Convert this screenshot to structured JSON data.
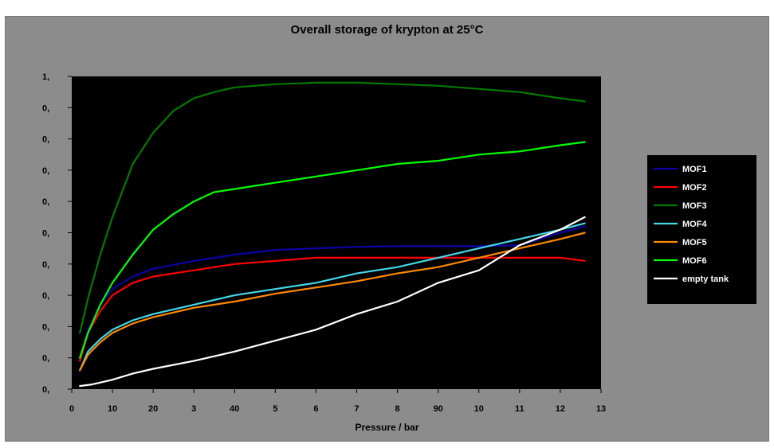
{
  "chart_data": {
    "type": "line",
    "title": "Overall storage of krypton at 25°C",
    "xlabel": "Pressure / bar",
    "ylabel": "",
    "x_tick_labels": [
      "0",
      "10",
      "20",
      "3",
      "40",
      "5",
      "6",
      "7",
      "8",
      "90",
      "10",
      "11",
      "12",
      "13"
    ],
    "y_tick_labels": [
      "0,",
      "0,",
      "0,",
      "0,",
      "0,",
      "0,",
      "0,",
      "0,",
      "0,",
      "0,",
      "1,"
    ],
    "xlim": [
      0,
      130
    ],
    "ylim": [
      0,
      1
    ],
    "grid": false,
    "legend_position": "right",
    "colors": {
      "frame": "#8c8c8c",
      "plot_background": "#000000",
      "legend_background": "#000000"
    },
    "series": [
      {
        "name": "MOF1",
        "color": "#0d00a8",
        "points": [
          [
            2,
            0.09
          ],
          [
            4,
            0.19
          ],
          [
            7,
            0.27
          ],
          [
            10,
            0.32
          ],
          [
            15,
            0.36
          ],
          [
            20,
            0.385
          ],
          [
            30,
            0.41
          ],
          [
            40,
            0.43
          ],
          [
            50,
            0.445
          ],
          [
            60,
            0.45
          ],
          [
            70,
            0.455
          ],
          [
            80,
            0.457
          ],
          [
            90,
            0.457
          ],
          [
            100,
            0.457
          ],
          [
            110,
            0.46
          ],
          [
            120,
            0.5
          ],
          [
            126,
            0.52
          ]
        ]
      },
      {
        "name": "MOF2",
        "color": "#ff0000",
        "points": [
          [
            2,
            0.09
          ],
          [
            4,
            0.18
          ],
          [
            7,
            0.25
          ],
          [
            10,
            0.3
          ],
          [
            15,
            0.34
          ],
          [
            20,
            0.36
          ],
          [
            30,
            0.38
          ],
          [
            40,
            0.4
          ],
          [
            50,
            0.41
          ],
          [
            60,
            0.42
          ],
          [
            70,
            0.42
          ],
          [
            80,
            0.42
          ],
          [
            90,
            0.42
          ],
          [
            100,
            0.42
          ],
          [
            110,
            0.42
          ],
          [
            120,
            0.42
          ],
          [
            126,
            0.41
          ]
        ]
      },
      {
        "name": "MOF3",
        "color": "#007a00",
        "points": [
          [
            2,
            0.18
          ],
          [
            4,
            0.29
          ],
          [
            7,
            0.43
          ],
          [
            10,
            0.55
          ],
          [
            15,
            0.72
          ],
          [
            20,
            0.82
          ],
          [
            25,
            0.89
          ],
          [
            30,
            0.93
          ],
          [
            35,
            0.95
          ],
          [
            40,
            0.965
          ],
          [
            50,
            0.975
          ],
          [
            60,
            0.98
          ],
          [
            70,
            0.98
          ],
          [
            80,
            0.975
          ],
          [
            90,
            0.97
          ],
          [
            100,
            0.96
          ],
          [
            110,
            0.95
          ],
          [
            120,
            0.93
          ],
          [
            126,
            0.92
          ]
        ]
      },
      {
        "name": "MOF4",
        "color": "#45d7ea",
        "points": [
          [
            2,
            0.06
          ],
          [
            4,
            0.12
          ],
          [
            7,
            0.16
          ],
          [
            10,
            0.19
          ],
          [
            15,
            0.22
          ],
          [
            20,
            0.24
          ],
          [
            30,
            0.27
          ],
          [
            40,
            0.3
          ],
          [
            50,
            0.32
          ],
          [
            60,
            0.34
          ],
          [
            70,
            0.37
          ],
          [
            80,
            0.39
          ],
          [
            90,
            0.42
          ],
          [
            100,
            0.45
          ],
          [
            110,
            0.48
          ],
          [
            120,
            0.51
          ],
          [
            126,
            0.53
          ]
        ]
      },
      {
        "name": "MOF5",
        "color": "#ff8a00",
        "points": [
          [
            2,
            0.06
          ],
          [
            4,
            0.11
          ],
          [
            7,
            0.15
          ],
          [
            10,
            0.18
          ],
          [
            15,
            0.21
          ],
          [
            20,
            0.23
          ],
          [
            30,
            0.26
          ],
          [
            40,
            0.28
          ],
          [
            50,
            0.305
          ],
          [
            60,
            0.325
          ],
          [
            70,
            0.345
          ],
          [
            80,
            0.37
          ],
          [
            90,
            0.39
          ],
          [
            100,
            0.42
          ],
          [
            110,
            0.45
          ],
          [
            120,
            0.48
          ],
          [
            126,
            0.5
          ]
        ]
      },
      {
        "name": "MOF6",
        "color": "#00ff00",
        "points": [
          [
            2,
            0.1
          ],
          [
            4,
            0.18
          ],
          [
            7,
            0.27
          ],
          [
            10,
            0.34
          ],
          [
            15,
            0.43
          ],
          [
            20,
            0.51
          ],
          [
            25,
            0.56
          ],
          [
            30,
            0.6
          ],
          [
            35,
            0.63
          ],
          [
            40,
            0.64
          ],
          [
            50,
            0.66
          ],
          [
            60,
            0.68
          ],
          [
            70,
            0.7
          ],
          [
            80,
            0.72
          ],
          [
            90,
            0.73
          ],
          [
            100,
            0.75
          ],
          [
            110,
            0.76
          ],
          [
            120,
            0.78
          ],
          [
            126,
            0.79
          ]
        ]
      },
      {
        "name": "empty tank",
        "color": "#ffffff",
        "points": [
          [
            2,
            0.01
          ],
          [
            5,
            0.015
          ],
          [
            10,
            0.03
          ],
          [
            15,
            0.05
          ],
          [
            20,
            0.065
          ],
          [
            30,
            0.09
          ],
          [
            40,
            0.12
          ],
          [
            50,
            0.155
          ],
          [
            60,
            0.19
          ],
          [
            70,
            0.24
          ],
          [
            80,
            0.28
          ],
          [
            90,
            0.34
          ],
          [
            100,
            0.38
          ],
          [
            110,
            0.46
          ],
          [
            120,
            0.51
          ],
          [
            126,
            0.55
          ]
        ]
      }
    ]
  }
}
